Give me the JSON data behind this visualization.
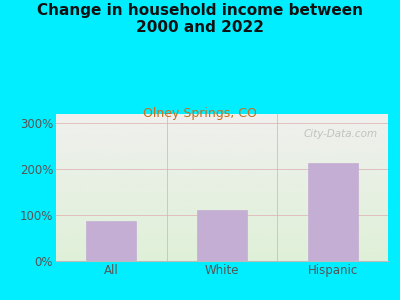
{
  "title": "Change in household income between\n2000 and 2022",
  "subtitle": "Olney Springs, CO",
  "categories": [
    "All",
    "White",
    "Hispanic"
  ],
  "values": [
    88,
    112,
    213
  ],
  "bar_color": "#c4aed4",
  "bar_edge_color": "#c4aed4",
  "title_fontsize": 11,
  "subtitle_fontsize": 9,
  "subtitle_color": "#c47020",
  "title_color": "#111111",
  "tick_label_color": "#555555",
  "ytick_labels": [
    "0%",
    "100%",
    "200%",
    "300%"
  ],
  "ytick_values": [
    0,
    100,
    200,
    300
  ],
  "ylim": [
    0,
    320
  ],
  "background_outer": "#00eeff",
  "background_plot_top": "#f0f0ee",
  "background_plot_bottom": "#dff0d8",
  "grid_color": "#e0b8b8",
  "watermark": "City-Data.com"
}
